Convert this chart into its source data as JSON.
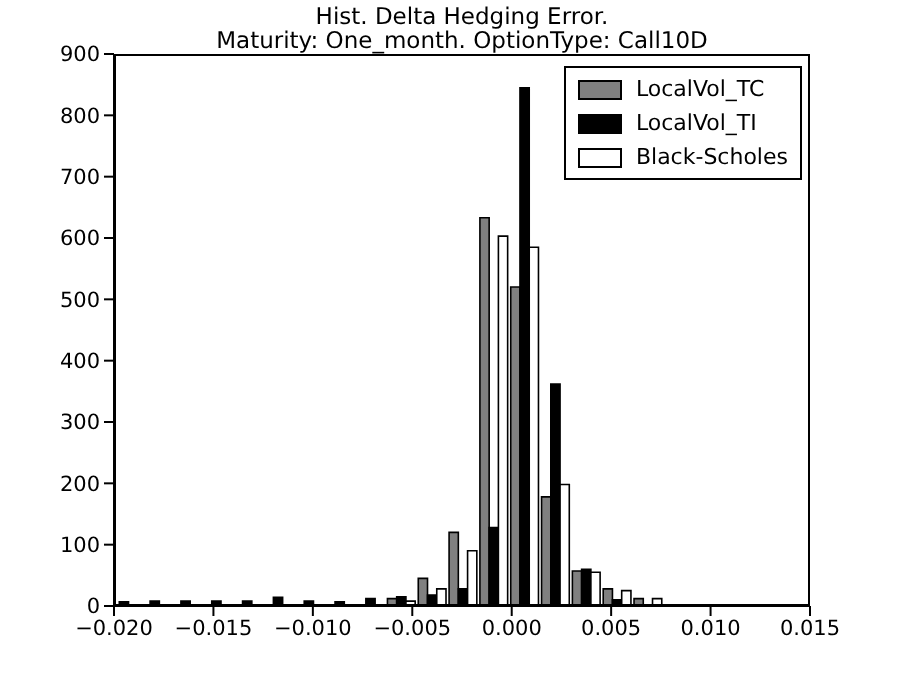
{
  "chart_data": {
    "type": "histogram",
    "title": "Hist. Delta Hedging Error.\nMaturity: One_month. OptionType: Call10D",
    "bins": [
      -0.0203,
      -0.01875,
      -0.0172,
      -0.01565,
      -0.0141,
      -0.01255,
      -0.011,
      -0.00945,
      -0.0079,
      -0.00635,
      -0.0048,
      -0.00325,
      -0.0017,
      -0.00015,
      0.0014,
      0.00295,
      0.0045,
      0.00605,
      0.0076,
      0.00915,
      0.0107
    ],
    "series": [
      {
        "name": "LocalVol_TC",
        "color": "#808080",
        "values": [
          2,
          1,
          1,
          1,
          1,
          2,
          1,
          null,
          2,
          12,
          45,
          120,
          633,
          520,
          178,
          57,
          28,
          12,
          0,
          0
        ]
      },
      {
        "name": "LocalVol_TI",
        "color": "#000000",
        "values": [
          7,
          8,
          8,
          8,
          8,
          14,
          8,
          7,
          12,
          15,
          18,
          28,
          128,
          845,
          362,
          60,
          10,
          2,
          null,
          1
        ]
      },
      {
        "name": "Black-Scholes",
        "color": "#ffffff",
        "values": [
          1,
          1,
          1,
          1,
          1,
          1,
          1,
          null,
          2,
          8,
          28,
          90,
          603,
          585,
          198,
          55,
          25,
          12,
          1,
          0
        ]
      }
    ],
    "xlim": [
      -0.02,
      0.015
    ],
    "xticks": [
      {
        "value": -0.02,
        "label": "−0.020"
      },
      {
        "value": -0.015,
        "label": "−0.015"
      },
      {
        "value": -0.01,
        "label": "−0.010"
      },
      {
        "value": -0.005,
        "label": "−0.005"
      },
      {
        "value": 0,
        "label": "0.000"
      },
      {
        "value": 0.005,
        "label": "0.005"
      },
      {
        "value": 0.01,
        "label": "0.010"
      },
      {
        "value": 0.015,
        "label": "0.015"
      }
    ],
    "ylim": [
      0,
      900
    ],
    "yticks": [
      0,
      100,
      200,
      300,
      400,
      500,
      600,
      700,
      800,
      900
    ],
    "grid": false,
    "legend": "top right"
  }
}
